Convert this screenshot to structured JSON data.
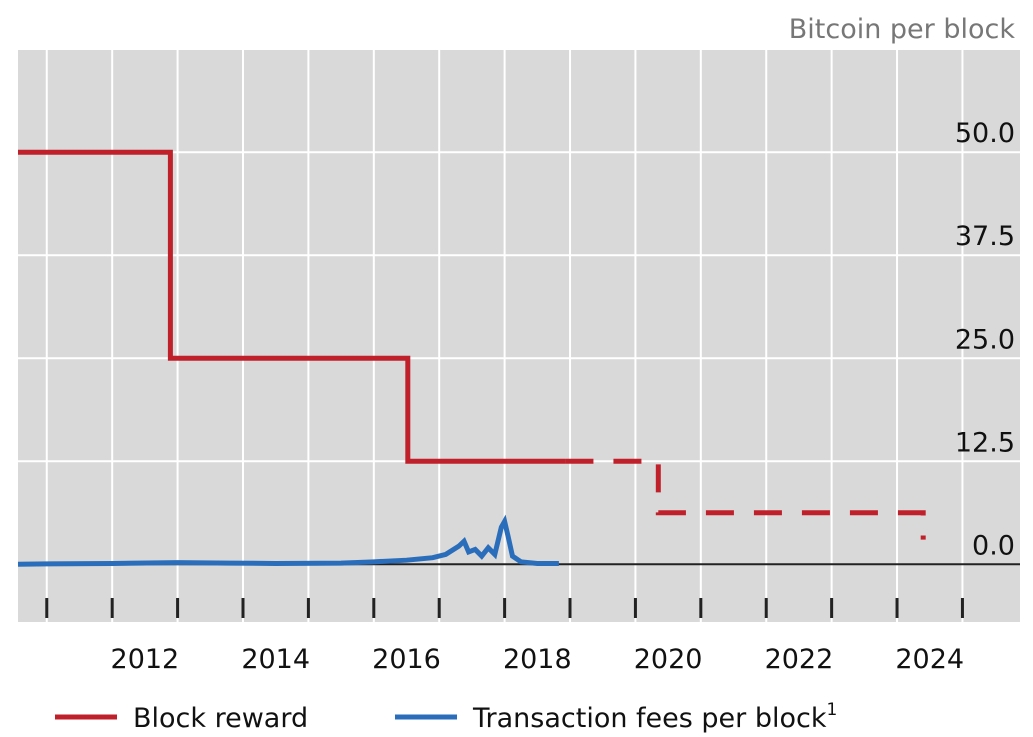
{
  "chart_data": {
    "type": "line",
    "y_axis_label": "Bitcoin per block",
    "xlim": [
      2010.56,
      2025.88
    ],
    "ylim": [
      -7,
      62.4
    ],
    "xticks": [
      2012,
      2014,
      2016,
      2018,
      2020,
      2022,
      2024
    ],
    "xticks_minor": [
      2011,
      2013,
      2015,
      2017,
      2019,
      2021,
      2023,
      2025
    ],
    "yticks": [
      {
        "value": 0,
        "label": "0.0"
      },
      12.5,
      {
        "value": 25,
        "label": "25.0"
      },
      37.5,
      {
        "value": 50,
        "label": "50.0"
      }
    ],
    "grid": true,
    "series": [
      {
        "name": "Block reward",
        "color": "#c0202a",
        "dashed_from_x": 2018.93,
        "x": [
          2010.56,
          2012.89,
          2012.89,
          2016.52,
          2016.52,
          2018.93,
          2020.35,
          2020.35,
          2024.4,
          2024.4
        ],
        "values": [
          50,
          50,
          25,
          25,
          12.5,
          12.5,
          12.5,
          6.25,
          6.25,
          3
        ]
      },
      {
        "name": "Transaction fees per block",
        "name_note": "1",
        "color": "#2a6ebb",
        "x": [
          2010.56,
          2011,
          2012,
          2013,
          2013.8,
          2014.5,
          2015.5,
          2016,
          2016.5,
          2016.9,
          2017.1,
          2017.3,
          2017.38,
          2017.45,
          2017.55,
          2017.65,
          2017.75,
          2017.85,
          2017.95,
          2018.0,
          2018.05,
          2018.12,
          2018.25,
          2018.5,
          2018.83
        ],
        "values": [
          0,
          0.05,
          0.1,
          0.2,
          0.15,
          0.1,
          0.15,
          0.3,
          0.5,
          0.8,
          1.2,
          2.2,
          2.8,
          1.5,
          1.8,
          1.0,
          2.0,
          1.2,
          4.5,
          5.2,
          3.5,
          1.0,
          0.3,
          0.1,
          0.1
        ]
      }
    ]
  }
}
